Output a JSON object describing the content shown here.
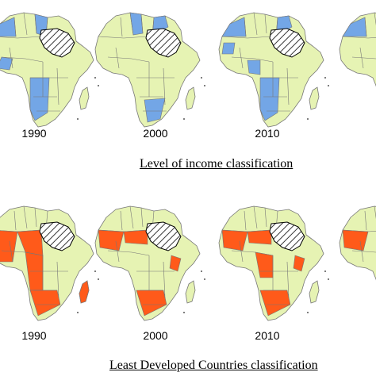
{
  "panels": [
    {
      "caption": "Level of income classification",
      "years": [
        "1990",
        "2000",
        "2010"
      ],
      "maps": [
        {
          "year": "1990",
          "fill_scheme": "income"
        },
        {
          "year": "2000",
          "fill_scheme": "income"
        },
        {
          "year": "2010",
          "fill_scheme": "income"
        },
        {
          "year": "",
          "fill_scheme": "income"
        }
      ]
    },
    {
      "caption": "Least Developed Countries classification",
      "years": [
        "1990",
        "2000",
        "2010"
      ],
      "maps": [
        {
          "year": "1990",
          "fill_scheme": "ldc"
        },
        {
          "year": "2000",
          "fill_scheme": "ldc"
        },
        {
          "year": "2010",
          "fill_scheme": "ldc"
        },
        {
          "year": "",
          "fill_scheme": "ldc"
        }
      ]
    }
  ],
  "colors": {
    "base": "#e6f3b3",
    "income_highlight": "#73a6e6",
    "ldc_highlight": "#ff5a1a",
    "border": "#777777",
    "hatch": "#333333"
  }
}
